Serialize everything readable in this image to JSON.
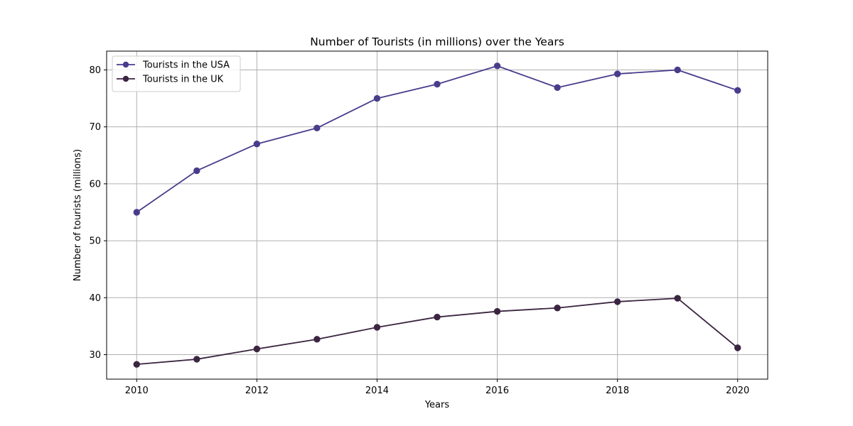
{
  "chart_data": {
    "type": "line",
    "title": "Number of Tourists (in millions) over the Years",
    "xlabel": "Years",
    "ylabel": "Number of tourists (millions)",
    "x": [
      2010,
      2011,
      2012,
      2013,
      2014,
      2015,
      2016,
      2017,
      2018,
      2019,
      2020
    ],
    "xlim": [
      2009.5,
      2020.5
    ],
    "ylim": [
      25.7,
      83.3
    ],
    "xticks": [
      2010,
      2012,
      2014,
      2016,
      2018,
      2020
    ],
    "yticks": [
      30,
      40,
      50,
      60,
      70,
      80
    ],
    "grid": true,
    "legend_position": "top-left",
    "series": [
      {
        "name": "Tourists in the USA",
        "color": "#483d8b",
        "marker": "circle",
        "values": [
          55.0,
          62.3,
          67.0,
          69.8,
          75.0,
          77.5,
          80.7,
          76.9,
          79.3,
          80.0,
          76.4
        ]
      },
      {
        "name": "Tourists in the UK",
        "color": "#3b2540",
        "marker": "circle",
        "values": [
          28.3,
          29.2,
          31.0,
          32.7,
          34.8,
          36.6,
          37.6,
          38.2,
          39.3,
          39.9,
          31.2
        ]
      }
    ]
  }
}
